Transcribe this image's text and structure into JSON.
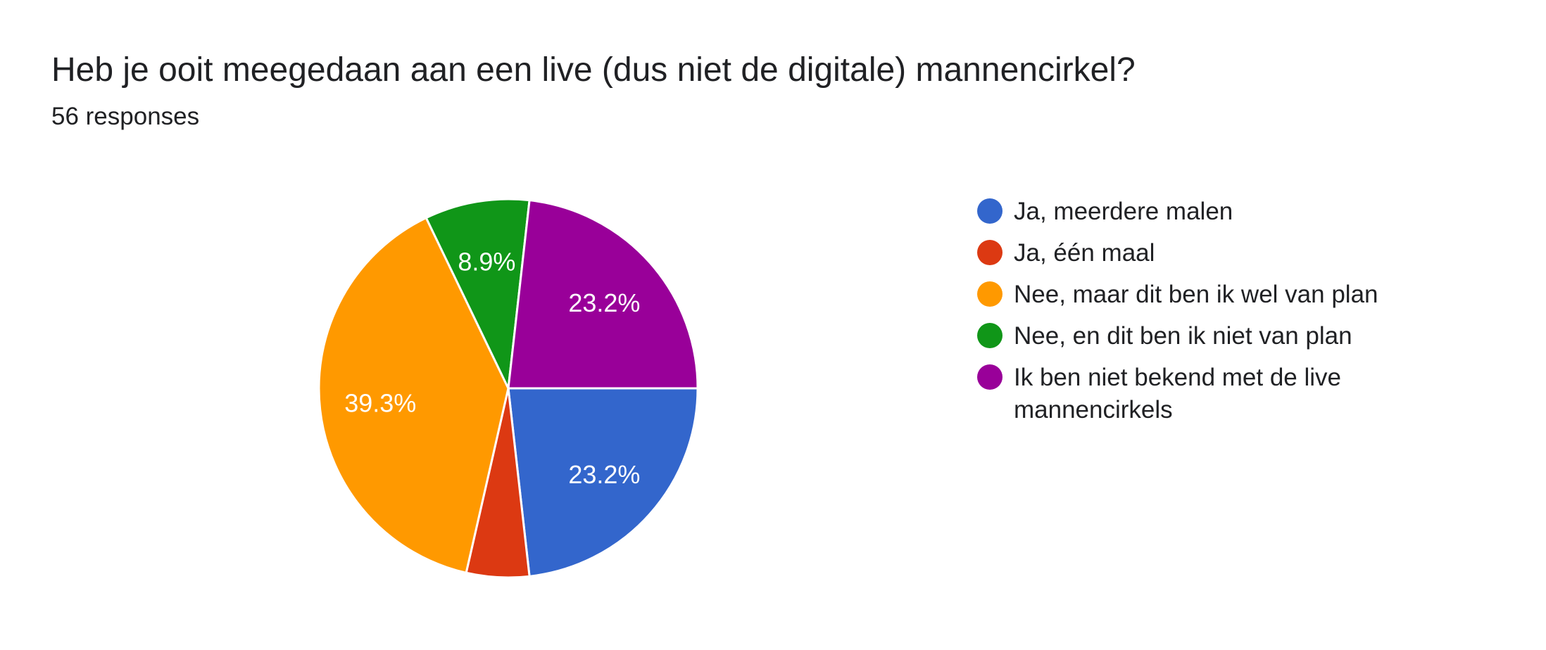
{
  "header": {
    "title": "Heb je ooit meegedaan aan een live (dus niet de digitale) mannencirkel?",
    "responses": "56 responses"
  },
  "chart_data": {
    "type": "pie",
    "categories": [
      "Ja, meerdere malen",
      "Ja, één maal",
      "Nee, maar dit ben ik wel van plan",
      "Nee, en dit ben ik niet van plan",
      "Ik ben niet bekend met de live mannencirkels"
    ],
    "values": [
      13,
      3,
      22,
      5,
      13
    ],
    "percent_labels": [
      "23.2%",
      "",
      "39.3%",
      "8.9%",
      "23.2%"
    ],
    "colors": [
      "#3366cc",
      "#dc3912",
      "#ff9900",
      "#109618",
      "#990099"
    ],
    "legend_position": "right",
    "start_angle_deg": 90
  }
}
